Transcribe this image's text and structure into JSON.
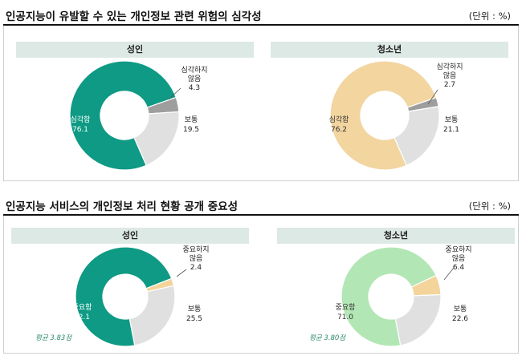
{
  "sections": [
    {
      "title": "인공지능이 유발할 수 있는 개인정보 관련 위험의 심각성",
      "unit": "(단위 : %)",
      "charts": [
        {
          "panel_title": "성인",
          "chart_data": {
            "type": "pie",
            "donut": true,
            "title": "성인",
            "categories": [
              "심각함",
              "심각하지 않음",
              "보통"
            ],
            "values": [
              76.1,
              4.3,
              19.5
            ],
            "value_labels": [
              "76.1",
              "4.3",
              "19.5"
            ],
            "colors": [
              "#0e9a84",
              "#9e9e9e",
              "#e0e0e0"
            ],
            "label_colors": [
              "#ffffff",
              "#222222",
              "#222222"
            ]
          }
        },
        {
          "panel_title": "청소년",
          "chart_data": {
            "type": "pie",
            "donut": true,
            "title": "청소년",
            "categories": [
              "심각함",
              "심각하지 않음",
              "보통"
            ],
            "values": [
              76.2,
              2.7,
              21.1
            ],
            "value_labels": [
              "76.2",
              "2.7",
              "21.1"
            ],
            "colors": [
              "#f3d5a0",
              "#9e9e9e",
              "#e0e0e0"
            ],
            "label_colors": [
              "#333333",
              "#222222",
              "#222222"
            ]
          }
        }
      ]
    },
    {
      "title": "인공지능 서비스의 개인정보 처리 현황 공개 중요성",
      "unit": "(단위 : %)",
      "charts": [
        {
          "panel_title": "성인",
          "average_note": "평균 3.83점",
          "chart_data": {
            "type": "pie",
            "donut": true,
            "title": "성인",
            "categories": [
              "중요함",
              "중요하지 않음",
              "보통"
            ],
            "values": [
              72.1,
              2.4,
              25.5
            ],
            "value_labels": [
              "72.1",
              "2.4",
              "25.5"
            ],
            "colors": [
              "#0e9a84",
              "#f4d49a",
              "#e0e0e0"
            ],
            "label_colors": [
              "#ffffff",
              "#222222",
              "#222222"
            ]
          }
        },
        {
          "panel_title": "청소년",
          "average_note": "평균 3.80점",
          "chart_data": {
            "type": "pie",
            "donut": true,
            "title": "청소년",
            "categories": [
              "중요함",
              "중요하지 않음",
              "보통"
            ],
            "values": [
              71.0,
              6.4,
              22.6
            ],
            "value_labels": [
              "71.0",
              "6.4",
              "22.6"
            ],
            "colors": [
              "#b3e6b5",
              "#f4d49a",
              "#e0e0e0"
            ],
            "label_colors": [
              "#333333",
              "#222222",
              "#222222"
            ]
          }
        }
      ]
    }
  ]
}
